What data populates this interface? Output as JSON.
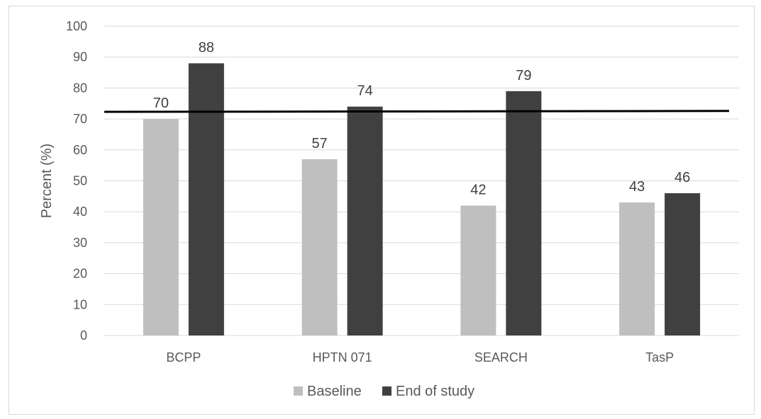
{
  "chart_data": {
    "type": "bar",
    "categories": [
      "BCPP",
      "HPTN 071",
      "SEARCH",
      "TasP"
    ],
    "series": [
      {
        "name": "Baseline",
        "values": [
          70,
          57,
          42,
          43
        ],
        "color": "#bfbfbf"
      },
      {
        "name": "End of study",
        "values": [
          88,
          74,
          79,
          46
        ],
        "color": "#404040"
      }
    ],
    "title": "",
    "xlabel": "",
    "ylabel": "Percent (%)",
    "ylim": [
      0,
      100
    ],
    "yticks": [
      0,
      10,
      20,
      30,
      40,
      50,
      60,
      70,
      80,
      90,
      100
    ],
    "grid": true,
    "legend": "bottom",
    "reference_line": {
      "y_start": 72.3,
      "y_end": 72.6,
      "color": "#000000"
    },
    "gridline_color": "#d9d9d9"
  }
}
